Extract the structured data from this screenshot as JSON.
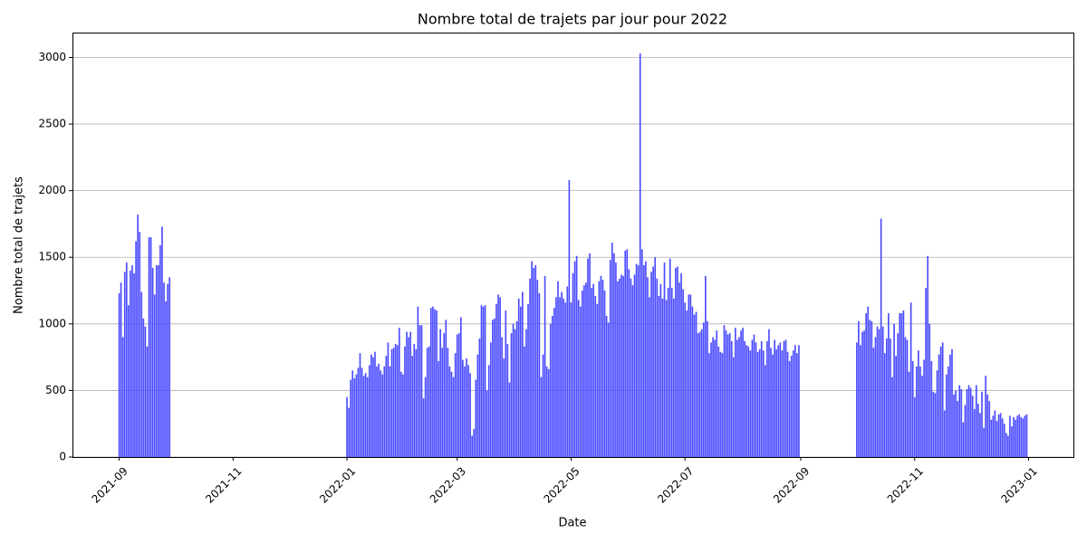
{
  "chart_data": {
    "type": "bar",
    "title": "Nombre total de trajets par jour pour 2022",
    "x_label": "Date",
    "y_label": "Nombre total de trajets",
    "color": "#4b4bff",
    "grid": "y",
    "xlim": [
      "2021-08-07",
      "2023-01-25"
    ],
    "xticks": [
      "2021-09",
      "2021-11",
      "2022-01",
      "2022-03",
      "2022-05",
      "2022-07",
      "2022-09",
      "2022-11",
      "2023-01"
    ],
    "ylim": [
      0,
      3180
    ],
    "yticks": [
      0,
      500,
      1000,
      1500,
      2000,
      2500,
      3000
    ],
    "x": [
      "2021-09-01",
      "2021-09-02",
      "2021-09-03",
      "2021-09-04",
      "2021-09-05",
      "2021-09-06",
      "2021-09-07",
      "2021-09-08",
      "2021-09-09",
      "2021-09-10",
      "2021-09-11",
      "2021-09-12",
      "2021-09-13",
      "2021-09-14",
      "2021-09-15",
      "2021-09-16",
      "2021-09-17",
      "2021-09-18",
      "2021-09-19",
      "2021-09-20",
      "2021-09-21",
      "2021-09-22",
      "2021-09-23",
      "2021-09-24",
      "2021-09-25",
      "2021-09-26",
      "2021-09-27",
      "2021-09-28",
      "2022-01-01",
      "2022-01-02",
      "2022-01-03",
      "2022-01-04",
      "2022-01-05",
      "2022-01-06",
      "2022-01-07",
      "2022-01-08",
      "2022-01-09",
      "2022-01-10",
      "2022-01-11",
      "2022-01-12",
      "2022-01-13",
      "2022-01-14",
      "2022-01-15",
      "2022-01-16",
      "2022-01-17",
      "2022-01-18",
      "2022-01-19",
      "2022-01-20",
      "2022-01-21",
      "2022-01-22",
      "2022-01-23",
      "2022-01-24",
      "2022-01-25",
      "2022-01-26",
      "2022-01-27",
      "2022-01-28",
      "2022-01-29",
      "2022-01-30",
      "2022-01-31",
      "2022-02-01",
      "2022-02-02",
      "2022-02-03",
      "2022-02-04",
      "2022-02-05",
      "2022-02-06",
      "2022-02-07",
      "2022-02-08",
      "2022-02-09",
      "2022-02-10",
      "2022-02-11",
      "2022-02-12",
      "2022-02-13",
      "2022-02-14",
      "2022-02-15",
      "2022-02-16",
      "2022-02-17",
      "2022-02-18",
      "2022-02-19",
      "2022-02-20",
      "2022-02-21",
      "2022-02-22",
      "2022-02-23",
      "2022-02-24",
      "2022-02-25",
      "2022-02-26",
      "2022-02-27",
      "2022-02-28",
      "2022-03-01",
      "2022-03-02",
      "2022-03-03",
      "2022-03-04",
      "2022-03-05",
      "2022-03-06",
      "2022-03-07",
      "2022-03-08",
      "2022-03-09",
      "2022-03-10",
      "2022-03-11",
      "2022-03-12",
      "2022-03-13",
      "2022-03-14",
      "2022-03-15",
      "2022-03-16",
      "2022-03-17",
      "2022-03-18",
      "2022-03-19",
      "2022-03-20",
      "2022-03-21",
      "2022-03-22",
      "2022-03-23",
      "2022-03-24",
      "2022-03-25",
      "2022-03-26",
      "2022-03-27",
      "2022-03-28",
      "2022-03-29",
      "2022-03-30",
      "2022-03-31",
      "2022-04-01",
      "2022-04-02",
      "2022-04-03",
      "2022-04-04",
      "2022-04-05",
      "2022-04-06",
      "2022-04-07",
      "2022-04-08",
      "2022-04-09",
      "2022-04-10",
      "2022-04-11",
      "2022-04-12",
      "2022-04-13",
      "2022-04-14",
      "2022-04-15",
      "2022-04-16",
      "2022-04-17",
      "2022-04-18",
      "2022-04-19",
      "2022-04-20",
      "2022-04-21",
      "2022-04-22",
      "2022-04-23",
      "2022-04-24",
      "2022-04-25",
      "2022-04-26",
      "2022-04-27",
      "2022-04-28",
      "2022-04-29",
      "2022-04-30",
      "2022-05-01",
      "2022-05-02",
      "2022-05-03",
      "2022-05-04",
      "2022-05-05",
      "2022-05-06",
      "2022-05-07",
      "2022-05-08",
      "2022-05-09",
      "2022-05-10",
      "2022-05-11",
      "2022-05-12",
      "2022-05-13",
      "2022-05-14",
      "2022-05-15",
      "2022-05-16",
      "2022-05-17",
      "2022-05-18",
      "2022-05-19",
      "2022-05-20",
      "2022-05-21",
      "2022-05-22",
      "2022-05-23",
      "2022-05-24",
      "2022-05-25",
      "2022-05-26",
      "2022-05-27",
      "2022-05-28",
      "2022-05-29",
      "2022-05-30",
      "2022-05-31",
      "2022-06-01",
      "2022-06-02",
      "2022-06-03",
      "2022-06-04",
      "2022-06-05",
      "2022-06-06",
      "2022-06-07",
      "2022-06-08",
      "2022-06-09",
      "2022-06-10",
      "2022-06-11",
      "2022-06-12",
      "2022-06-13",
      "2022-06-14",
      "2022-06-15",
      "2022-06-16",
      "2022-06-17",
      "2022-06-18",
      "2022-06-19",
      "2022-06-20",
      "2022-06-21",
      "2022-06-22",
      "2022-06-23",
      "2022-06-24",
      "2022-06-25",
      "2022-06-26",
      "2022-06-27",
      "2022-06-28",
      "2022-06-29",
      "2022-06-30",
      "2022-07-01",
      "2022-07-02",
      "2022-07-03",
      "2022-07-04",
      "2022-07-05",
      "2022-07-06",
      "2022-07-07",
      "2022-07-08",
      "2022-07-09",
      "2022-07-10",
      "2022-07-11",
      "2022-07-12",
      "2022-07-13",
      "2022-07-14",
      "2022-07-15",
      "2022-07-16",
      "2022-07-17",
      "2022-07-18",
      "2022-07-19",
      "2022-07-20",
      "2022-07-21",
      "2022-07-22",
      "2022-07-23",
      "2022-07-24",
      "2022-07-25",
      "2022-07-26",
      "2022-07-27",
      "2022-07-28",
      "2022-07-29",
      "2022-07-30",
      "2022-07-31",
      "2022-08-01",
      "2022-08-02",
      "2022-08-03",
      "2022-08-04",
      "2022-08-05",
      "2022-08-06",
      "2022-08-07",
      "2022-08-08",
      "2022-08-09",
      "2022-08-10",
      "2022-08-11",
      "2022-08-12",
      "2022-08-13",
      "2022-08-14",
      "2022-08-15",
      "2022-08-16",
      "2022-08-17",
      "2022-08-18",
      "2022-08-19",
      "2022-08-20",
      "2022-08-21",
      "2022-08-22",
      "2022-08-23",
      "2022-08-24",
      "2022-08-25",
      "2022-08-26",
      "2022-08-27",
      "2022-08-28",
      "2022-08-29",
      "2022-08-30",
      "2022-08-31",
      "2022-10-01",
      "2022-10-02",
      "2022-10-03",
      "2022-10-04",
      "2022-10-05",
      "2022-10-06",
      "2022-10-07",
      "2022-10-08",
      "2022-10-09",
      "2022-10-10",
      "2022-10-11",
      "2022-10-12",
      "2022-10-13",
      "2022-10-14",
      "2022-10-15",
      "2022-10-16",
      "2022-10-17",
      "2022-10-18",
      "2022-10-19",
      "2022-10-20",
      "2022-10-21",
      "2022-10-22",
      "2022-10-23",
      "2022-10-24",
      "2022-10-25",
      "2022-10-26",
      "2022-10-27",
      "2022-10-28",
      "2022-10-29",
      "2022-10-30",
      "2022-10-31",
      "2022-11-01",
      "2022-11-02",
      "2022-11-03",
      "2022-11-04",
      "2022-11-05",
      "2022-11-06",
      "2022-11-07",
      "2022-11-08",
      "2022-11-09",
      "2022-11-10",
      "2022-11-11",
      "2022-11-12",
      "2022-11-13",
      "2022-11-14",
      "2022-11-15",
      "2022-11-16",
      "2022-11-17",
      "2022-11-18",
      "2022-11-19",
      "2022-11-20",
      "2022-11-21",
      "2022-11-22",
      "2022-11-23",
      "2022-11-24",
      "2022-11-25",
      "2022-11-26",
      "2022-11-27",
      "2022-11-28",
      "2022-11-29",
      "2022-11-30",
      "2022-12-01",
      "2022-12-02",
      "2022-12-03",
      "2022-12-04",
      "2022-12-05",
      "2022-12-06",
      "2022-12-07",
      "2022-12-08",
      "2022-12-09",
      "2022-12-10",
      "2022-12-11",
      "2022-12-12",
      "2022-12-13",
      "2022-12-14",
      "2022-12-15",
      "2022-12-16",
      "2022-12-17",
      "2022-12-18",
      "2022-12-19",
      "2022-12-20",
      "2022-12-21",
      "2022-12-22",
      "2022-12-23",
      "2022-12-24",
      "2022-12-25",
      "2022-12-26",
      "2022-12-27",
      "2022-12-28",
      "2022-12-29",
      "2022-12-30",
      "2022-12-31"
    ],
    "values": [
      1230,
      1310,
      900,
      1390,
      1460,
      1140,
      1400,
      1440,
      1380,
      1620,
      1820,
      1690,
      1240,
      1040,
      980,
      830,
      1650,
      1650,
      1420,
      1220,
      1440,
      1440,
      1590,
      1730,
      1310,
      1170,
      1300,
      1350,
      450,
      370,
      580,
      650,
      590,
      620,
      670,
      780,
      670,
      610,
      630,
      600,
      690,
      770,
      750,
      790,
      680,
      700,
      650,
      620,
      680,
      760,
      860,
      680,
      810,
      820,
      850,
      840,
      970,
      640,
      620,
      830,
      940,
      900,
      940,
      760,
      850,
      810,
      1130,
      990,
      990,
      440,
      600,
      820,
      830,
      1120,
      1130,
      1110,
      1100,
      720,
      960,
      820,
      930,
      1030,
      820,
      680,
      640,
      600,
      780,
      920,
      930,
      1050,
      730,
      680,
      740,
      690,
      630,
      160,
      210,
      580,
      770,
      890,
      1140,
      1130,
      1140,
      500,
      690,
      860,
      1030,
      1040,
      1150,
      1220,
      1200,
      900,
      740,
      1100,
      850,
      560,
      930,
      1000,
      960,
      1020,
      1190,
      1130,
      1240,
      830,
      960,
      1150,
      1340,
      1470,
      1420,
      1440,
      1330,
      1230,
      600,
      770,
      1360,
      680,
      660,
      1000,
      1060,
      1120,
      1200,
      1320,
      1200,
      1240,
      1190,
      1160,
      1280,
      2080,
      1160,
      1380,
      1470,
      1510,
      1180,
      1130,
      1250,
      1290,
      1310,
      1490,
      1530,
      1270,
      1300,
      1210,
      1150,
      1320,
      1360,
      1330,
      1250,
      1060,
      1010,
      1480,
      1610,
      1530,
      1460,
      1320,
      1340,
      1370,
      1360,
      1550,
      1560,
      1410,
      1340,
      1290,
      1370,
      1450,
      1440,
      3030,
      1560,
      1440,
      1470,
      1350,
      1200,
      1390,
      1430,
      1500,
      1340,
      1210,
      1300,
      1190,
      1460,
      1180,
      1270,
      1490,
      1270,
      1190,
      1420,
      1430,
      1310,
      1380,
      1260,
      1160,
      1100,
      1220,
      1220,
      1130,
      1070,
      1090,
      930,
      940,
      960,
      1010,
      1360,
      1020,
      780,
      860,
      900,
      880,
      950,
      830,
      790,
      780,
      990,
      950,
      920,
      930,
      870,
      750,
      970,
      880,
      900,
      950,
      970,
      870,
      840,
      830,
      800,
      880,
      920,
      860,
      790,
      810,
      870,
      800,
      690,
      870,
      960,
      820,
      770,
      880,
      810,
      840,
      860,
      800,
      870,
      880,
      790,
      720,
      760,
      800,
      840,
      780,
      840,
      860,
      1020,
      840,
      940,
      950,
      1080,
      1130,
      1030,
      1020,
      820,
      900,
      980,
      960,
      1790,
      980,
      780,
      890,
      1080,
      890,
      600,
      1000,
      760,
      930,
      1080,
      1080,
      1100,
      900,
      880,
      640,
      1160,
      720,
      450,
      680,
      800,
      680,
      610,
      730,
      1270,
      1510,
      1000,
      720,
      490,
      480,
      650,
      770,
      830,
      860,
      350,
      620,
      680,
      770,
      810,
      470,
      500,
      420,
      540,
      510,
      260,
      390,
      510,
      540,
      520,
      460,
      360,
      540,
      400,
      330,
      490,
      220,
      610,
      470,
      420,
      280,
      310,
      350,
      270,
      320,
      330,
      290,
      250,
      180,
      160,
      310,
      230,
      300,
      280,
      310,
      320,
      300,
      290,
      310,
      320
    ]
  }
}
